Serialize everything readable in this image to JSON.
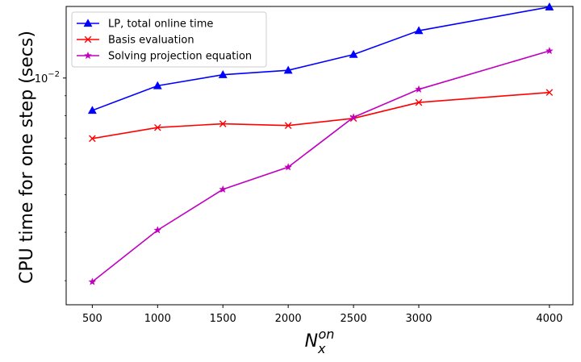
{
  "chart_data": {
    "type": "line",
    "title": "",
    "xlabel_base": "N",
    "xlabel_sub": "x",
    "xlabel_sup": "on",
    "ylabel": "CPU time for one step (secs)",
    "yscale": "log",
    "xlim": [
      300,
      4180
    ],
    "ylim": [
      0.0026,
      0.0153
    ],
    "x": [
      500,
      1000,
      1500,
      2000,
      2500,
      3000,
      4000
    ],
    "xtick_labels": [
      "500",
      "1000",
      "1500",
      "2000",
      "2500",
      "3000",
      "4000"
    ],
    "ytick_base": "10",
    "ytick_exp": "−2",
    "ytick_value": 0.01,
    "grid": false,
    "legend_position": "top-left",
    "series": [
      {
        "name": "LP, total online time",
        "color": "#0000ff",
        "marker": "triangle",
        "values": [
          0.00825,
          0.00955,
          0.0102,
          0.01047,
          0.0115,
          0.01325,
          0.01525
        ]
      },
      {
        "name": "Basis evaluation",
        "color": "#ff0000",
        "marker": "x",
        "values": [
          0.00698,
          0.00745,
          0.00762,
          0.00754,
          0.00787,
          0.00865,
          0.00918
        ]
      },
      {
        "name": "Solving projection equation",
        "color": "#bf00bf",
        "marker": "star",
        "values": [
          0.00298,
          0.00405,
          0.00516,
          0.00589,
          0.00792,
          0.00935,
          0.01175
        ]
      }
    ]
  }
}
